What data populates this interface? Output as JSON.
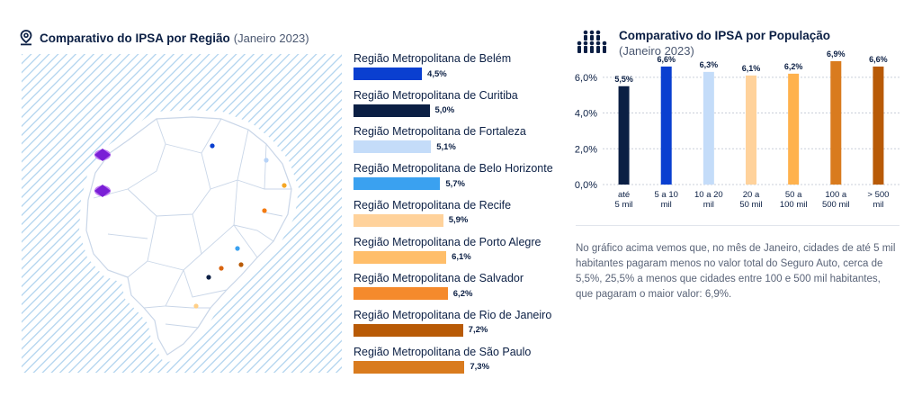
{
  "left_chart": {
    "title": "Comparativo do IPSA por Região",
    "subtitle": "(Janeiro 2023)",
    "icon": "map-pin-icon"
  },
  "right_chart": {
    "title": "Comparativo do IPSA por População",
    "subtitle": "(Janeiro 2023)",
    "icon": "people-group-icon"
  },
  "map": {
    "icon": "map-pin-icon",
    "markers": [
      {
        "color": "#0a3fd0"
      },
      {
        "color": "#b7d3f7"
      },
      {
        "color": "#f5a623"
      },
      {
        "color": "#f37b12"
      },
      {
        "color": "#3aa1f0"
      },
      {
        "color": "#b85a06"
      },
      {
        "color": "#0b1f44"
      },
      {
        "color": "#d9640f"
      },
      {
        "color": "#ffcf87"
      }
    ]
  },
  "chart_data": [
    {
      "type": "bar",
      "orientation": "horizontal",
      "categories": [
        "Região Metropolitana de Belém",
        "Região Metropolitana de Curitiba",
        "Região Metropolitana de Fortaleza",
        "Região Metropolitana de Belo Horizonte",
        "Região Metropolitana de Recife",
        "Região Metropolitana de Porto Alegre",
        "Região Metropolitana de Salvador",
        "Região Metropolitana de Rio de Janeiro",
        "Região Metropolitana de São Paulo"
      ],
      "values": [
        4.5,
        5.0,
        5.1,
        5.7,
        5.9,
        6.1,
        6.2,
        7.2,
        7.3
      ],
      "value_labels": [
        "4,5%",
        "5,0%",
        "5,1%",
        "5,7%",
        "5,9%",
        "6,1%",
        "6,2%",
        "7,2%",
        "7,3%"
      ],
      "colors": [
        "#0a3fd0",
        "#0b1f44",
        "#c4dcf9",
        "#3aa1f0",
        "#ffd29b",
        "#ffbe6a",
        "#f58a2c",
        "#b85a06",
        "#d97b1e"
      ],
      "unit": "%"
    },
    {
      "type": "bar",
      "categories": [
        [
          "até",
          "5 mil"
        ],
        [
          "5 a 10",
          "mil"
        ],
        [
          "10 a 20",
          "mil"
        ],
        [
          "20 a",
          "50 mil"
        ],
        [
          "50 a",
          "100 mil"
        ],
        [
          "100 a",
          "500 mil"
        ],
        [
          "> 500",
          "mil"
        ]
      ],
      "values": [
        5.5,
        6.6,
        6.3,
        6.1,
        6.2,
        6.9,
        6.6
      ],
      "value_labels": [
        "5,5%",
        "6,6%",
        "6,3%",
        "6,1%",
        "6,2%",
        "6,9%",
        "6,6%"
      ],
      "colors": [
        "#0b1f44",
        "#0a3fd0",
        "#c4dcf9",
        "#ffd29b",
        "#ffb24d",
        "#d97b1e",
        "#b85a06"
      ],
      "yticks": [
        "0,0%",
        "2,0%",
        "4,0%",
        "6,0%"
      ],
      "ytick_values": [
        0,
        2,
        4,
        6
      ],
      "ylim": [
        0,
        7.2
      ],
      "grid": true
    }
  ],
  "note": "No gráfico acima vemos que, no mês de Janeiro, cidades de até 5 mil habitantes pagaram menos no valor total do Seguro Auto, cerca de 5,5%, 25,5% a menos que cidades entre 100 e 500 mil habitantes, que pagaram o maior valor: 6,9%."
}
